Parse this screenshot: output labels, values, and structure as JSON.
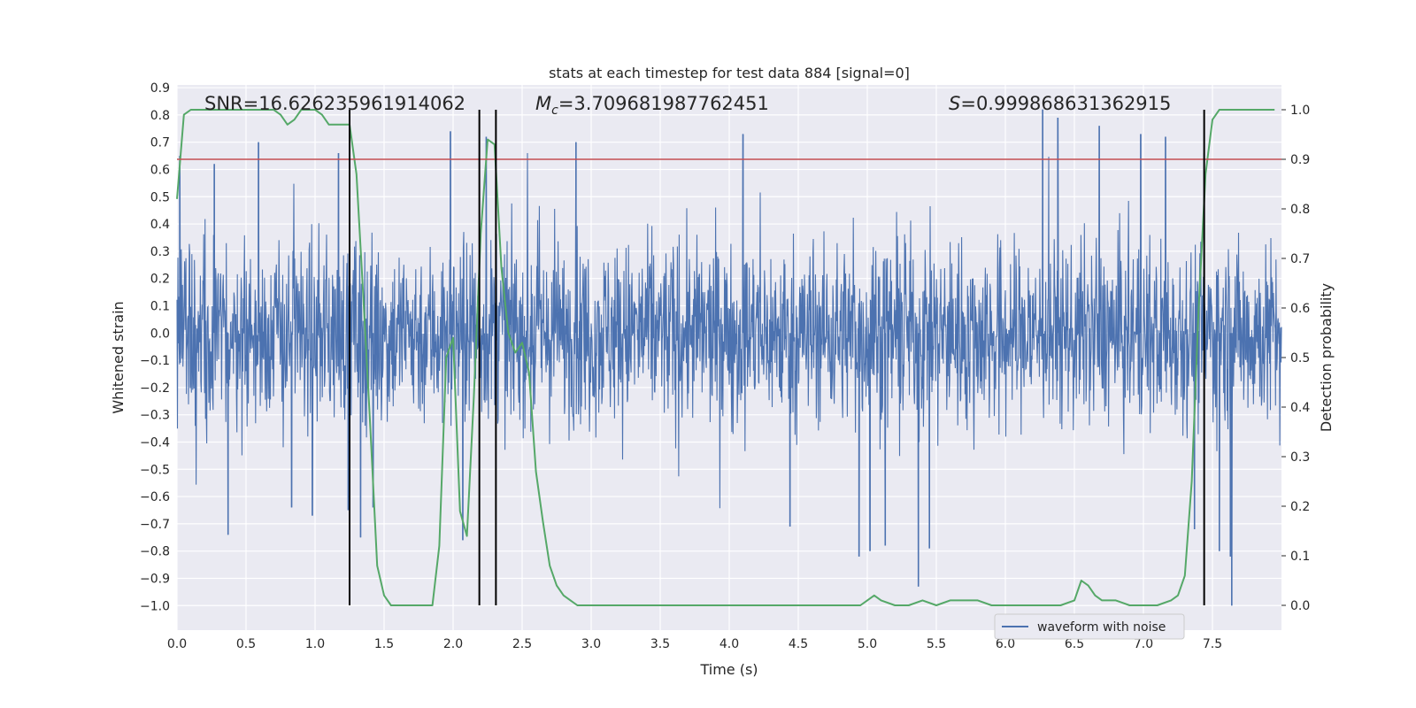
{
  "chart_data": {
    "type": "line",
    "title": "stats at each timestep for test data 884 [signal=0]",
    "xlabel": "Time (s)",
    "ylabel": "Whitened strain",
    "y2label": "Detection probability",
    "xlim": [
      0.0,
      8.0
    ],
    "ylim": [
      -1.09,
      0.91
    ],
    "y2lim": [
      -0.05,
      1.05
    ],
    "x_ticks": [
      "0.0",
      "0.5",
      "1.0",
      "1.5",
      "2.0",
      "2.5",
      "3.0",
      "3.5",
      "4.0",
      "4.5",
      "5.0",
      "5.5",
      "6.0",
      "6.5",
      "7.0",
      "7.5"
    ],
    "y_ticks": [
      "0.9",
      "0.8",
      "0.7",
      "0.6",
      "0.5",
      "0.4",
      "0.3",
      "0.2",
      "0.1",
      "0.0",
      "−0.1",
      "−0.2",
      "−0.3",
      "−0.4",
      "−0.5",
      "−0.6",
      "−0.7",
      "−0.8",
      "−0.9",
      "−1.0"
    ],
    "y2_ticks": [
      "1.0",
      "0.9",
      "0.8",
      "0.7",
      "0.6",
      "0.5",
      "0.4",
      "0.3",
      "0.2",
      "0.1",
      "0.0"
    ],
    "grid": true,
    "legend_position": "lower right",
    "annotations": {
      "snr": "SNR=16.626235961914062",
      "mc_symbol": "M",
      "mc_sub": "c",
      "mc_value": "=3.709681987762451",
      "s_symbol": "S",
      "s_value": "=0.999868631362915"
    },
    "threshold_line": {
      "axis": "y2",
      "value": 0.9,
      "color": "#c44e52"
    },
    "vertical_lines_x": [
      1.25,
      2.19,
      2.31,
      7.44
    ],
    "series": [
      {
        "name": "waveform with noise",
        "axis": "y",
        "color": "#4c72b0",
        "style": "dense noisy waveform, core band approx ±0.3, peaks up to +0.82 and down to −1.0",
        "envelope_core": 0.3,
        "spikes": [
          {
            "x": 0.02,
            "y": 0.65
          },
          {
            "x": 0.27,
            "y": 0.62
          },
          {
            "x": 0.37,
            "y": -0.74
          },
          {
            "x": 0.59,
            "y": 0.7
          },
          {
            "x": 0.83,
            "y": -0.64
          },
          {
            "x": 0.98,
            "y": -0.67
          },
          {
            "x": 1.17,
            "y": 0.66
          },
          {
            "x": 1.24,
            "y": -0.65
          },
          {
            "x": 1.33,
            "y": -0.75
          },
          {
            "x": 1.42,
            "y": -0.64
          },
          {
            "x": 1.98,
            "y": 0.74
          },
          {
            "x": 2.07,
            "y": -0.76
          },
          {
            "x": 2.24,
            "y": 0.72
          },
          {
            "x": 2.89,
            "y": 0.7
          },
          {
            "x": 4.1,
            "y": 0.73
          },
          {
            "x": 4.44,
            "y": -0.71
          },
          {
            "x": 4.94,
            "y": -0.82
          },
          {
            "x": 5.02,
            "y": -0.8
          },
          {
            "x": 5.13,
            "y": -0.78
          },
          {
            "x": 5.37,
            "y": -0.93
          },
          {
            "x": 5.45,
            "y": -0.79
          },
          {
            "x": 6.27,
            "y": 0.82
          },
          {
            "x": 6.38,
            "y": 0.79
          },
          {
            "x": 6.68,
            "y": 0.76
          },
          {
            "x": 6.98,
            "y": 0.73
          },
          {
            "x": 7.16,
            "y": 0.72
          },
          {
            "x": 7.37,
            "y": -0.72
          },
          {
            "x": 7.44,
            "y": 0.66
          },
          {
            "x": 7.55,
            "y": -0.8
          },
          {
            "x": 7.64,
            "y": -1.0
          },
          {
            "x": 7.63,
            "y": -0.82
          }
        ]
      },
      {
        "name": "",
        "axis": "y2",
        "color": "#55a868",
        "x": [
          0.0,
          0.05,
          0.1,
          0.2,
          0.3,
          0.4,
          0.5,
          0.6,
          0.7,
          0.75,
          0.8,
          0.85,
          0.9,
          0.95,
          1.0,
          1.05,
          1.1,
          1.15,
          1.2,
          1.25,
          1.3,
          1.35,
          1.4,
          1.45,
          1.5,
          1.55,
          1.6,
          1.65,
          1.7,
          1.75,
          1.8,
          1.85,
          1.9,
          1.95,
          2.0,
          2.05,
          2.1,
          2.15,
          2.2,
          2.25,
          2.3,
          2.35,
          2.4,
          2.45,
          2.5,
          2.55,
          2.6,
          2.65,
          2.7,
          2.75,
          2.8,
          2.85,
          2.9,
          2.95,
          3.0,
          3.2,
          3.5,
          4.0,
          4.5,
          4.7,
          4.8,
          4.9,
          4.95,
          5.0,
          5.05,
          5.1,
          5.2,
          5.3,
          5.4,
          5.5,
          5.6,
          5.7,
          5.8,
          5.9,
          6.0,
          6.2,
          6.4,
          6.5,
          6.55,
          6.6,
          6.65,
          6.7,
          6.8,
          6.9,
          7.0,
          7.1,
          7.2,
          7.25,
          7.3,
          7.35,
          7.4,
          7.45,
          7.5,
          7.55,
          7.6,
          7.7,
          7.9,
          7.95
        ],
        "y": [
          0.82,
          0.99,
          1.0,
          1.0,
          1.0,
          1.0,
          1.0,
          1.0,
          1.0,
          0.99,
          0.97,
          0.98,
          1.0,
          1.0,
          1.0,
          0.99,
          0.97,
          0.97,
          0.97,
          0.97,
          0.87,
          0.62,
          0.36,
          0.08,
          0.02,
          0.0,
          0.0,
          0.0,
          0.0,
          0.0,
          0.0,
          0.0,
          0.12,
          0.5,
          0.54,
          0.19,
          0.14,
          0.42,
          0.75,
          0.94,
          0.93,
          0.68,
          0.55,
          0.51,
          0.53,
          0.47,
          0.27,
          0.17,
          0.08,
          0.04,
          0.02,
          0.01,
          0.0,
          0.0,
          0.0,
          0.0,
          0.0,
          0.0,
          0.0,
          0.0,
          0.0,
          0.0,
          0.0,
          0.01,
          0.02,
          0.01,
          0.0,
          0.0,
          0.01,
          0.0,
          0.01,
          0.01,
          0.01,
          0.0,
          0.0,
          0.0,
          0.0,
          0.01,
          0.05,
          0.04,
          0.02,
          0.01,
          0.01,
          0.0,
          0.0,
          0.0,
          0.01,
          0.02,
          0.06,
          0.25,
          0.6,
          0.87,
          0.98,
          1.0,
          1.0,
          1.0,
          1.0,
          1.0
        ]
      }
    ]
  }
}
